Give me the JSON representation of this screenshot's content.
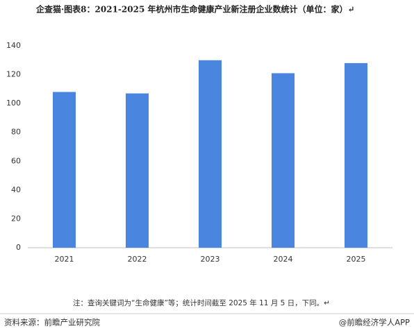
{
  "chart_data": {
    "type": "bar",
    "title": "企查猫·图表8：2021-2025 年杭州市生命健康产业新注册企业数统计（单位：家）↵",
    "categories": [
      "2021",
      "2022",
      "2023",
      "2024",
      "2025"
    ],
    "values": [
      108,
      107,
      130,
      121,
      128
    ],
    "color": "#4a86e0",
    "ylim": [
      0,
      140
    ],
    "yticks": [
      0,
      20,
      40,
      60,
      80,
      100,
      120,
      140
    ],
    "grid": false,
    "note": "注：查询关键词为“生命健康”等；统计时间截至 2025 年 11 月 5 日，下同。↵"
  },
  "footer": {
    "source": "资料来源：前瞻产业研究院",
    "brand": "@前瞻经济学人APP"
  }
}
